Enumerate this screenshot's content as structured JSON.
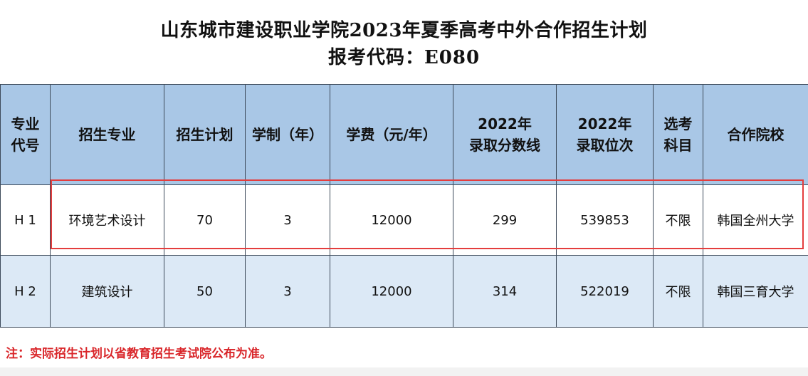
{
  "title": {
    "line1": "山东城市建设职业学院2023年夏季高考中外合作招生计划",
    "line2": "报考代码：E080"
  },
  "table": {
    "headers": [
      [
        "专业",
        "代号"
      ],
      [
        "招生专业"
      ],
      [
        "招生计划"
      ],
      [
        "学制（年）"
      ],
      [
        "学费（元/年）"
      ],
      [
        "2022年",
        "录取分数线"
      ],
      [
        "2022年",
        "录取位次"
      ],
      [
        "选考",
        "科目"
      ],
      [
        "合作院校"
      ]
    ],
    "rows": [
      [
        "H 1",
        "环境艺术设计",
        "70",
        "3",
        "12000",
        "299",
        "539853",
        "不限",
        "韩国全州大学"
      ],
      [
        "H 2",
        "建筑设计",
        "50",
        "3",
        "12000",
        "314",
        "522019",
        "不限",
        "韩国三育大学"
      ]
    ]
  },
  "note": "注：实际招生计划以省教育招生考试院公布为准。",
  "colors": {
    "header_bg": "#a9c7e6",
    "row2_bg": "#dce9f6",
    "highlight": "#e43d3d",
    "note_text": "#d9262a"
  }
}
